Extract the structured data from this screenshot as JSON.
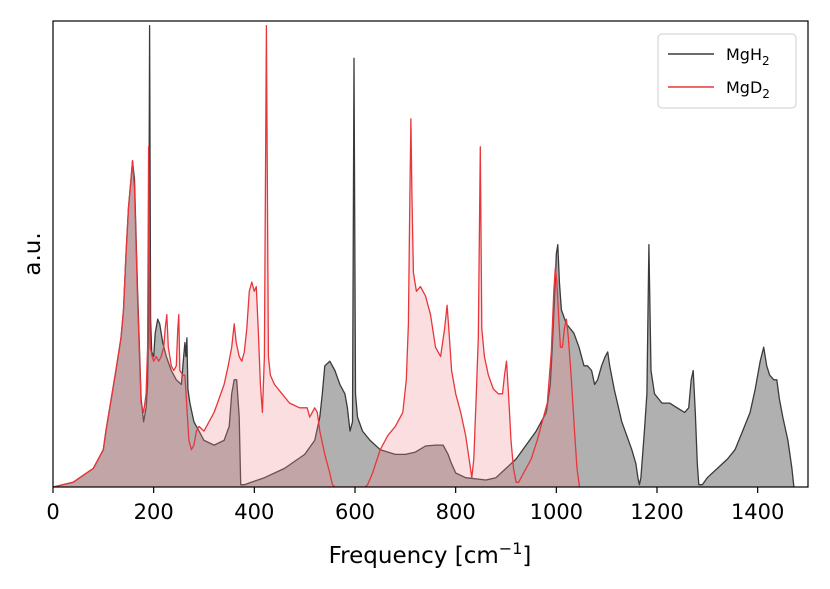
{
  "chart_data": {
    "type": "area",
    "title": "",
    "xlabel": "Frequency [cm",
    "xlabel_sup": "−1",
    "xlabel_suffix": "]",
    "ylabel": "a.u.",
    "xlim": [
      0,
      1500
    ],
    "ylim": [
      0,
      1.0
    ],
    "xticks": [
      0,
      200,
      400,
      600,
      800,
      1000,
      1200,
      1400
    ],
    "grid": false,
    "legend_position": "top-right",
    "series": [
      {
        "name": "MgH",
        "name_sub": "2",
        "line_color": "#3a3a3a",
        "fill_color": "#808080",
        "fill_opacity": 0.62,
        "points": [
          [
            0,
            0.0
          ],
          [
            40,
            0.01
          ],
          [
            80,
            0.04
          ],
          [
            100,
            0.08
          ],
          [
            105,
            0.12
          ],
          [
            125,
            0.25
          ],
          [
            135,
            0.32
          ],
          [
            140,
            0.38
          ],
          [
            145,
            0.5
          ],
          [
            150,
            0.6
          ],
          [
            155,
            0.66
          ],
          [
            158,
            0.7
          ],
          [
            162,
            0.66
          ],
          [
            168,
            0.42
          ],
          [
            175,
            0.19
          ],
          [
            180,
            0.14
          ],
          [
            185,
            0.17
          ],
          [
            188,
            0.22
          ],
          [
            190,
            0.36
          ],
          [
            192,
            0.99
          ],
          [
            194,
            0.36
          ],
          [
            196,
            0.29
          ],
          [
            200,
            0.28
          ],
          [
            203,
            0.33
          ],
          [
            208,
            0.36
          ],
          [
            212,
            0.35
          ],
          [
            218,
            0.31
          ],
          [
            225,
            0.28
          ],
          [
            235,
            0.25
          ],
          [
            245,
            0.23
          ],
          [
            255,
            0.22
          ],
          [
            258,
            0.26
          ],
          [
            262,
            0.31
          ],
          [
            264,
            0.28
          ],
          [
            266,
            0.32
          ],
          [
            268,
            0.21
          ],
          [
            272,
            0.18
          ],
          [
            280,
            0.14
          ],
          [
            290,
            0.12
          ],
          [
            300,
            0.1
          ],
          [
            320,
            0.09
          ],
          [
            340,
            0.1
          ],
          [
            350,
            0.13
          ],
          [
            355,
            0.2
          ],
          [
            360,
            0.23
          ],
          [
            365,
            0.23
          ],
          [
            370,
            0.15
          ],
          [
            373,
            0.005
          ],
          [
            380,
            0.005
          ],
          [
            420,
            0.02
          ],
          [
            460,
            0.04
          ],
          [
            500,
            0.07
          ],
          [
            520,
            0.1
          ],
          [
            530,
            0.15
          ],
          [
            535,
            0.2
          ],
          [
            540,
            0.26
          ],
          [
            550,
            0.27
          ],
          [
            560,
            0.25
          ],
          [
            570,
            0.22
          ],
          [
            580,
            0.2
          ],
          [
            585,
            0.17
          ],
          [
            590,
            0.12
          ],
          [
            595,
            0.14
          ],
          [
            598,
            0.92
          ],
          [
            601,
            0.2
          ],
          [
            605,
            0.15
          ],
          [
            615,
            0.12
          ],
          [
            630,
            0.1
          ],
          [
            650,
            0.08
          ],
          [
            680,
            0.07
          ],
          [
            700,
            0.07
          ],
          [
            720,
            0.075
          ],
          [
            740,
            0.088
          ],
          [
            760,
            0.09
          ],
          [
            775,
            0.09
          ],
          [
            785,
            0.07
          ],
          [
            790,
            0.055
          ],
          [
            800,
            0.03
          ],
          [
            820,
            0.02
          ],
          [
            860,
            0.015
          ],
          [
            880,
            0.02
          ],
          [
            900,
            0.04
          ],
          [
            920,
            0.06
          ],
          [
            940,
            0.09
          ],
          [
            960,
            0.12
          ],
          [
            970,
            0.14
          ],
          [
            980,
            0.16
          ],
          [
            988,
            0.22
          ],
          [
            992,
            0.3
          ],
          [
            995,
            0.37
          ],
          [
            998,
            0.44
          ],
          [
            1000,
            0.5
          ],
          [
            1003,
            0.52
          ],
          [
            1006,
            0.44
          ],
          [
            1010,
            0.38
          ],
          [
            1020,
            0.35
          ],
          [
            1035,
            0.33
          ],
          [
            1045,
            0.3
          ],
          [
            1055,
            0.26
          ],
          [
            1062,
            0.26
          ],
          [
            1070,
            0.25
          ],
          [
            1076,
            0.22
          ],
          [
            1082,
            0.23
          ],
          [
            1090,
            0.26
          ],
          [
            1097,
            0.28
          ],
          [
            1102,
            0.29
          ],
          [
            1106,
            0.26
          ],
          [
            1115,
            0.21
          ],
          [
            1130,
            0.14
          ],
          [
            1140,
            0.11
          ],
          [
            1150,
            0.08
          ],
          [
            1158,
            0.05
          ],
          [
            1162,
            0.02
          ],
          [
            1165,
            0.005
          ],
          [
            1168,
            0.02
          ],
          [
            1175,
            0.12
          ],
          [
            1180,
            0.2
          ],
          [
            1184,
            0.52
          ],
          [
            1188,
            0.25
          ],
          [
            1195,
            0.2
          ],
          [
            1210,
            0.18
          ],
          [
            1225,
            0.18
          ],
          [
            1240,
            0.17
          ],
          [
            1255,
            0.16
          ],
          [
            1263,
            0.17
          ],
          [
            1268,
            0.23
          ],
          [
            1272,
            0.25
          ],
          [
            1276,
            0.16
          ],
          [
            1280,
            0.05
          ],
          [
            1283,
            0.005
          ],
          [
            1290,
            0.005
          ],
          [
            1300,
            0.02
          ],
          [
            1320,
            0.04
          ],
          [
            1340,
            0.06
          ],
          [
            1355,
            0.08
          ],
          [
            1370,
            0.12
          ],
          [
            1385,
            0.16
          ],
          [
            1395,
            0.21
          ],
          [
            1405,
            0.27
          ],
          [
            1412,
            0.3
          ],
          [
            1418,
            0.26
          ],
          [
            1424,
            0.24
          ],
          [
            1432,
            0.23
          ],
          [
            1438,
            0.23
          ],
          [
            1443,
            0.19
          ],
          [
            1450,
            0.15
          ],
          [
            1460,
            0.1
          ],
          [
            1468,
            0.04
          ],
          [
            1472,
            0.0
          ]
        ]
      },
      {
        "name": "MgD",
        "name_sub": "2",
        "line_color": "#e8363b",
        "fill_color": "#f08a8e",
        "fill_opacity": 0.28,
        "points": [
          [
            0,
            0.0
          ],
          [
            40,
            0.01
          ],
          [
            80,
            0.04
          ],
          [
            100,
            0.08
          ],
          [
            105,
            0.12
          ],
          [
            125,
            0.25
          ],
          [
            135,
            0.32
          ],
          [
            140,
            0.38
          ],
          [
            145,
            0.5
          ],
          [
            150,
            0.6
          ],
          [
            155,
            0.66
          ],
          [
            158,
            0.7
          ],
          [
            162,
            0.64
          ],
          [
            168,
            0.4
          ],
          [
            175,
            0.18
          ],
          [
            180,
            0.16
          ],
          [
            185,
            0.2
          ],
          [
            188,
            0.3
          ],
          [
            190,
            0.73
          ],
          [
            193,
            0.3
          ],
          [
            197,
            0.28
          ],
          [
            200,
            0.27
          ],
          [
            205,
            0.28
          ],
          [
            210,
            0.27
          ],
          [
            215,
            0.28
          ],
          [
            220,
            0.3
          ],
          [
            223,
            0.34
          ],
          [
            226,
            0.37
          ],
          [
            229,
            0.3
          ],
          [
            235,
            0.26
          ],
          [
            240,
            0.25
          ],
          [
            245,
            0.26
          ],
          [
            248,
            0.34
          ],
          [
            250,
            0.37
          ],
          [
            252,
            0.25
          ],
          [
            258,
            0.24
          ],
          [
            262,
            0.24
          ],
          [
            266,
            0.17
          ],
          [
            270,
            0.1
          ],
          [
            275,
            0.08
          ],
          [
            280,
            0.09
          ],
          [
            285,
            0.12
          ],
          [
            290,
            0.13
          ],
          [
            300,
            0.12
          ],
          [
            310,
            0.14
          ],
          [
            320,
            0.16
          ],
          [
            330,
            0.19
          ],
          [
            340,
            0.22
          ],
          [
            348,
            0.26
          ],
          [
            355,
            0.3
          ],
          [
            360,
            0.35
          ],
          [
            364,
            0.31
          ],
          [
            370,
            0.28
          ],
          [
            375,
            0.27
          ],
          [
            380,
            0.29
          ],
          [
            385,
            0.34
          ],
          [
            390,
            0.42
          ],
          [
            395,
            0.44
          ],
          [
            400,
            0.42
          ],
          [
            404,
            0.43
          ],
          [
            408,
            0.33
          ],
          [
            412,
            0.22
          ],
          [
            416,
            0.16
          ],
          [
            420,
            0.28
          ],
          [
            424,
            0.99
          ],
          [
            428,
            0.28
          ],
          [
            432,
            0.24
          ],
          [
            440,
            0.22
          ],
          [
            455,
            0.2
          ],
          [
            470,
            0.18
          ],
          [
            490,
            0.17
          ],
          [
            505,
            0.17
          ],
          [
            510,
            0.15
          ],
          [
            515,
            0.16
          ],
          [
            520,
            0.17
          ],
          [
            525,
            0.16
          ],
          [
            530,
            0.12
          ],
          [
            540,
            0.07
          ],
          [
            550,
            0.03
          ],
          [
            555,
            0.005
          ],
          [
            560,
            0.0
          ],
          [
            620,
            0.0
          ],
          [
            625,
            0.005
          ],
          [
            635,
            0.03
          ],
          [
            650,
            0.08
          ],
          [
            665,
            0.11
          ],
          [
            680,
            0.13
          ],
          [
            695,
            0.16
          ],
          [
            702,
            0.23
          ],
          [
            706,
            0.35
          ],
          [
            709,
            0.63
          ],
          [
            711,
            0.79
          ],
          [
            713,
            0.63
          ],
          [
            716,
            0.46
          ],
          [
            722,
            0.42
          ],
          [
            730,
            0.43
          ],
          [
            740,
            0.41
          ],
          [
            750,
            0.37
          ],
          [
            760,
            0.3
          ],
          [
            770,
            0.28
          ],
          [
            778,
            0.34
          ],
          [
            783,
            0.39
          ],
          [
            787,
            0.33
          ],
          [
            792,
            0.25
          ],
          [
            800,
            0.2
          ],
          [
            810,
            0.16
          ],
          [
            820,
            0.11
          ],
          [
            828,
            0.05
          ],
          [
            832,
            0.02
          ],
          [
            836,
            0.06
          ],
          [
            841,
            0.2
          ],
          [
            845,
            0.32
          ],
          [
            849,
            0.73
          ],
          [
            852,
            0.34
          ],
          [
            857,
            0.28
          ],
          [
            865,
            0.24
          ],
          [
            875,
            0.21
          ],
          [
            885,
            0.2
          ],
          [
            893,
            0.2
          ],
          [
            897,
            0.24
          ],
          [
            901,
            0.27
          ],
          [
            905,
            0.2
          ],
          [
            910,
            0.1
          ],
          [
            915,
            0.04
          ],
          [
            920,
            0.01
          ],
          [
            925,
            0.01
          ],
          [
            935,
            0.03
          ],
          [
            950,
            0.06
          ],
          [
            962,
            0.1
          ],
          [
            972,
            0.14
          ],
          [
            982,
            0.18
          ],
          [
            990,
            0.29
          ],
          [
            995,
            0.42
          ],
          [
            998,
            0.47
          ],
          [
            1001,
            0.44
          ],
          [
            1004,
            0.38
          ],
          [
            1008,
            0.3
          ],
          [
            1012,
            0.3
          ],
          [
            1016,
            0.34
          ],
          [
            1020,
            0.36
          ],
          [
            1024,
            0.32
          ],
          [
            1030,
            0.23
          ],
          [
            1036,
            0.12
          ],
          [
            1041,
            0.04
          ],
          [
            1046,
            0.0
          ]
        ]
      }
    ]
  }
}
